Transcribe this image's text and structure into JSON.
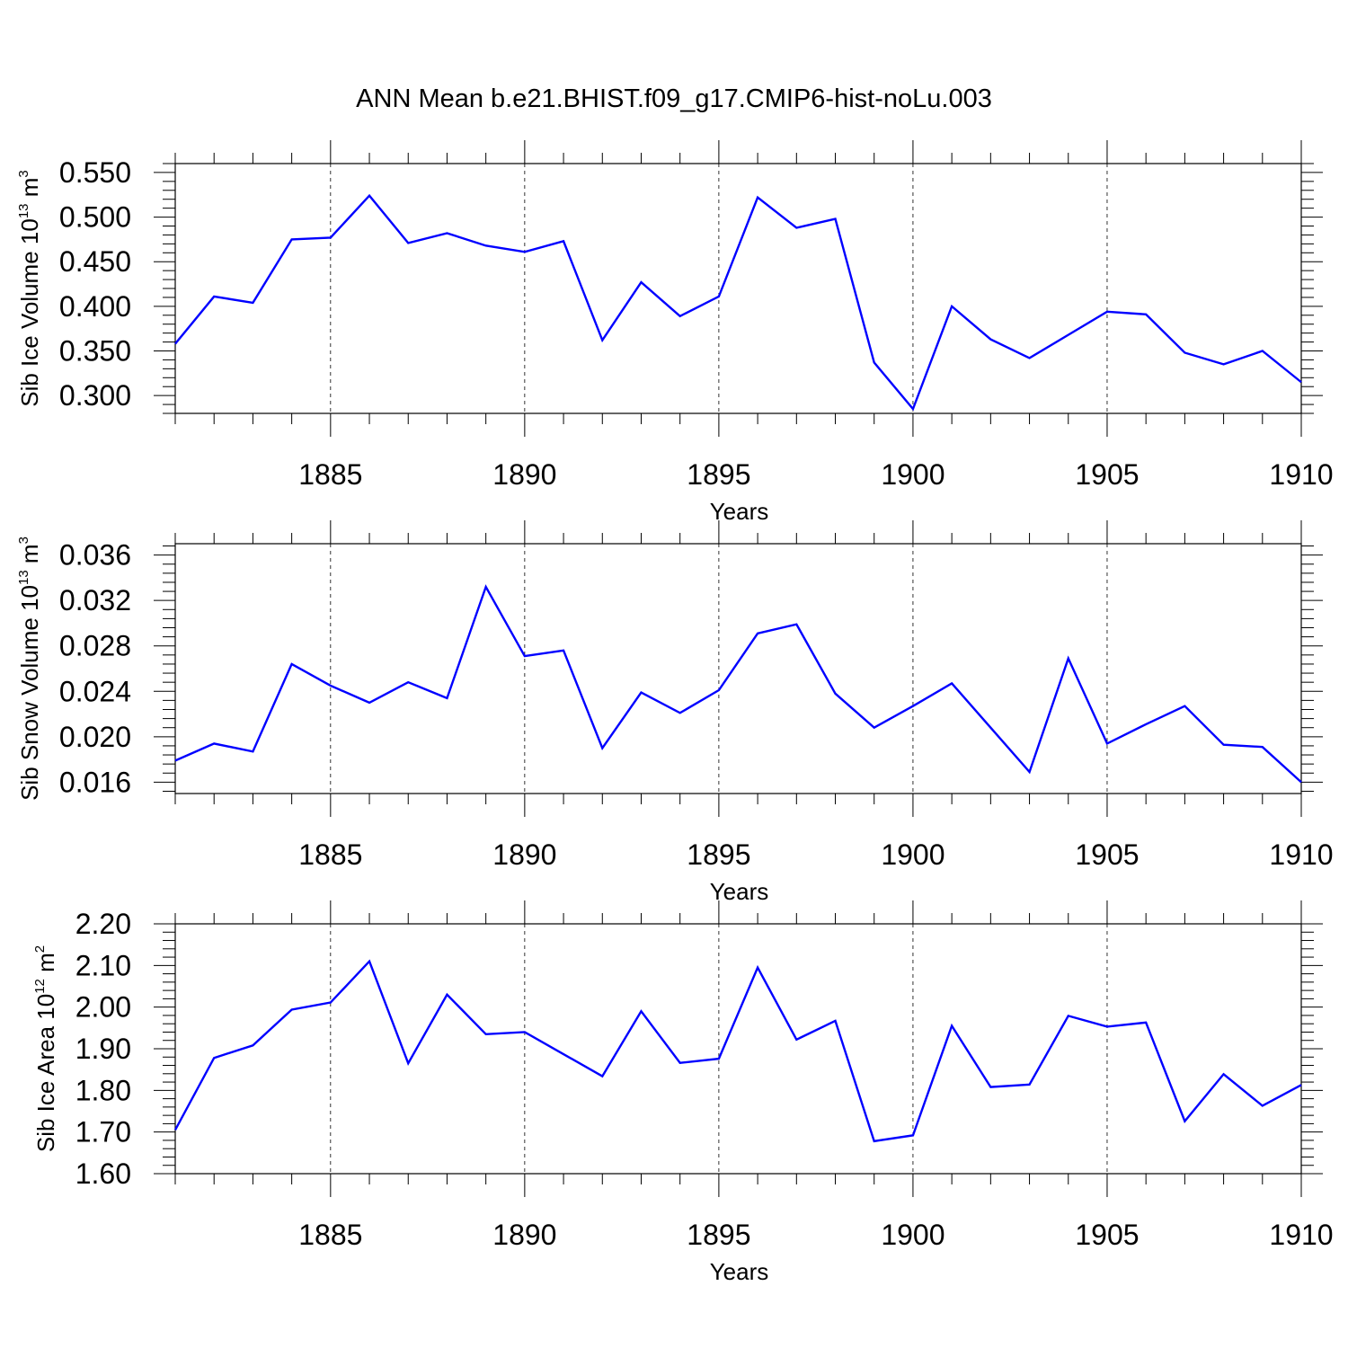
{
  "title": "ANN Mean b.e21.BHIST.f09_g17.CMIP6-hist-noLu.003",
  "chart_data": [
    {
      "type": "line",
      "ylabel": {
        "text": "Sib Ice Volume 10",
        "exp": "13",
        "unit": " m",
        "unit_exp": "3"
      },
      "xlabel": "Years",
      "xlim": [
        1881,
        1910
      ],
      "ylim": [
        0.28,
        0.56
      ],
      "yticks": [
        "0.300",
        "0.350",
        "0.400",
        "0.450",
        "0.500",
        "0.550"
      ],
      "ytick_values": [
        0.3,
        0.35,
        0.4,
        0.45,
        0.5,
        0.55
      ],
      "xticks": [
        "1885",
        "1890",
        "1895",
        "1900",
        "1905",
        "1910"
      ],
      "xtick_values": [
        1885,
        1890,
        1895,
        1900,
        1905,
        1910
      ],
      "grid": "vertical dashed at major x ticks",
      "line_color": "#0000ff",
      "x": [
        1881,
        1882,
        1883,
        1884,
        1885,
        1886,
        1887,
        1888,
        1889,
        1890,
        1891,
        1892,
        1893,
        1894,
        1895,
        1896,
        1897,
        1898,
        1899,
        1900,
        1901,
        1902,
        1903,
        1904,
        1905,
        1906,
        1907,
        1908,
        1909,
        1910
      ],
      "values": [
        0.358,
        0.411,
        0.404,
        0.475,
        0.477,
        0.524,
        0.471,
        0.482,
        0.468,
        0.461,
        0.473,
        0.362,
        0.427,
        0.389,
        0.411,
        0.522,
        0.488,
        0.498,
        0.337,
        0.285,
        0.4,
        0.363,
        0.342,
        0.368,
        0.394,
        0.391,
        0.348,
        0.335,
        0.35,
        0.315
      ]
    },
    {
      "type": "line",
      "ylabel": {
        "text": "Sib Snow Volume 10",
        "exp": "13",
        "unit": " m",
        "unit_exp": "3"
      },
      "xlabel": "Years",
      "xlim": [
        1881,
        1910
      ],
      "ylim": [
        0.015,
        0.037
      ],
      "yticks": [
        "0.016",
        "0.020",
        "0.024",
        "0.028",
        "0.032",
        "0.036"
      ],
      "ytick_values": [
        0.016,
        0.02,
        0.024,
        0.028,
        0.032,
        0.036
      ],
      "xticks": [
        "1885",
        "1890",
        "1895",
        "1900",
        "1905",
        "1910"
      ],
      "xtick_values": [
        1885,
        1890,
        1895,
        1900,
        1905,
        1910
      ],
      "grid": "vertical dashed at major x ticks",
      "line_color": "#0000ff",
      "x": [
        1881,
        1882,
        1883,
        1884,
        1885,
        1886,
        1887,
        1888,
        1889,
        1890,
        1891,
        1892,
        1893,
        1894,
        1895,
        1896,
        1897,
        1898,
        1899,
        1900,
        1901,
        1902,
        1903,
        1904,
        1905,
        1906,
        1907,
        1908,
        1909,
        1910
      ],
      "values": [
        0.0179,
        0.0194,
        0.0187,
        0.0264,
        0.0245,
        0.023,
        0.0248,
        0.0234,
        0.0332,
        0.0271,
        0.0276,
        0.019,
        0.0239,
        0.0221,
        0.0241,
        0.0291,
        0.0299,
        0.0238,
        0.0208,
        0.0227,
        0.0247,
        0.0208,
        0.0169,
        0.0269,
        0.0194,
        0.0211,
        0.0227,
        0.0193,
        0.0191,
        0.016
      ]
    },
    {
      "type": "line",
      "ylabel": {
        "text": "Sib Ice Area 10",
        "exp": "12",
        "unit": " m",
        "unit_exp": "2"
      },
      "xlabel": "Years",
      "xlim": [
        1881,
        1910
      ],
      "ylim": [
        1.6,
        2.2
      ],
      "yticks": [
        "1.60",
        "1.70",
        "1.80",
        "1.90",
        "2.00",
        "2.10",
        "2.20"
      ],
      "ytick_values": [
        1.6,
        1.7,
        1.8,
        1.9,
        2.0,
        2.1,
        2.2
      ],
      "xticks": [
        "1885",
        "1890",
        "1895",
        "1900",
        "1905",
        "1910"
      ],
      "xtick_values": [
        1885,
        1890,
        1895,
        1900,
        1905,
        1910
      ],
      "grid": "vertical dashed at major x ticks",
      "line_color": "#0000ff",
      "x": [
        1881,
        1882,
        1883,
        1884,
        1885,
        1886,
        1887,
        1888,
        1889,
        1890,
        1891,
        1892,
        1893,
        1894,
        1895,
        1896,
        1897,
        1898,
        1899,
        1900,
        1901,
        1902,
        1903,
        1904,
        1905,
        1906,
        1907,
        1908,
        1909,
        1910
      ],
      "values": [
        1.705,
        1.878,
        1.908,
        1.994,
        2.011,
        2.11,
        1.865,
        2.03,
        1.935,
        1.94,
        1.887,
        1.834,
        1.99,
        1.866,
        1.876,
        2.095,
        1.922,
        1.967,
        1.678,
        1.692,
        1.955,
        1.808,
        1.814,
        1.979,
        1.953,
        1.963,
        1.726,
        1.839,
        1.763,
        1.813
      ]
    }
  ]
}
